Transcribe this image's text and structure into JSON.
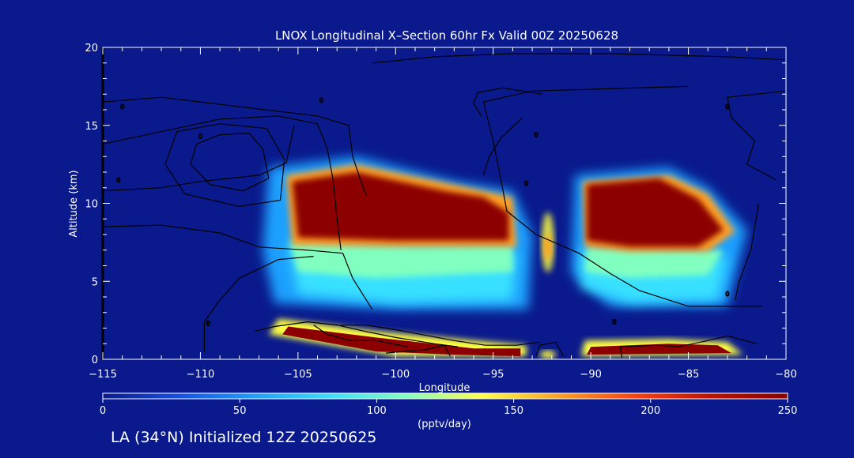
{
  "colors": {
    "background": "#0a1a8c",
    "text": "#ffffff",
    "contour": "#000000",
    "colorbar_stops": [
      "#0a1a8c",
      "#1450e6",
      "#1ea0ff",
      "#38e0ff",
      "#80ffc0",
      "#ffff40",
      "#ffa020",
      "#ff4010",
      "#c01000",
      "#8c0000"
    ]
  },
  "chart_data": {
    "type": "heatmap",
    "title": "LNOX Longitudinal X–Section 60hr  Fx Valid 00Z 20250628",
    "xlabel": "Longitude",
    "ylabel": "Altitude (km)",
    "xlim": [
      -115,
      -80
    ],
    "ylim": [
      0,
      20
    ],
    "x_ticks": [
      -115,
      -110,
      -105,
      -100,
      -95,
      -90,
      -85,
      -80
    ],
    "x_tick_labels": [
      "−115",
      "−110",
      "−105",
      "−100",
      "−95",
      "−90",
      "−85",
      "−80"
    ],
    "y_ticks": [
      0,
      5,
      10,
      15,
      20
    ],
    "y_tick_labels": [
      "0",
      "5",
      "10",
      "15",
      "20"
    ],
    "colorbar": {
      "min": 0,
      "max": 250,
      "ticks": [
        0,
        50,
        100,
        150,
        200,
        250
      ],
      "tick_labels": [
        "0",
        "50",
        "100",
        "150",
        "200",
        "250"
      ],
      "label": "(pptv/day)"
    },
    "features": [
      {
        "desc": "upper lobe west",
        "lon_range": [
          -106,
          -93.5
        ],
        "alt_range": [
          7,
          12.5
        ],
        "value": 250
      },
      {
        "desc": "upper lobe east",
        "lon_range": [
          -90.5,
          -82.5
        ],
        "alt_range": [
          7,
          12
        ],
        "value": 250
      },
      {
        "desc": "lower layer west",
        "lon_range": [
          -105.5,
          -93.5
        ],
        "alt_range": [
          0.5,
          2
        ],
        "value": 250
      },
      {
        "desc": "lower layer east",
        "lon_range": [
          -90,
          -83
        ],
        "alt_range": [
          0.5,
          1
        ],
        "value": 250
      }
    ],
    "contour_labels": [
      "0",
      "0",
      "0",
      "0",
      "0",
      "0",
      "0",
      "0",
      "0",
      "0"
    ]
  },
  "footer": "LA (34°N) Initialized 12Z 20250625"
}
